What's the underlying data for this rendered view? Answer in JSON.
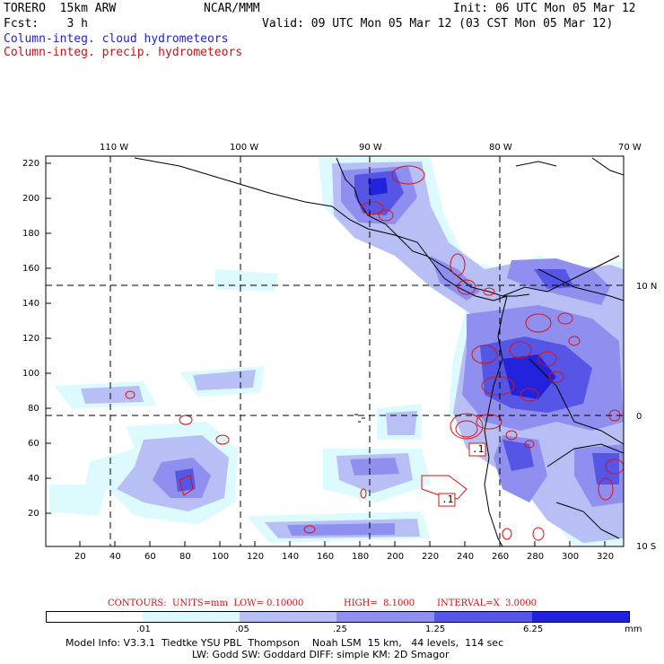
{
  "header": {
    "model": "TORERO  15km ARW",
    "org": "NCAR/MMM",
    "init": "Init: 06 UTC Mon 05 Mar 12",
    "fcst": "Fcst:    3 h",
    "valid": "Valid: 09 UTC Mon 05 Mar 12 (03 CST Mon 05 Mar 12)",
    "field1": "Column-integ. cloud hydrometeors",
    "field2": "Column-integ. precip. hydrometeors"
  },
  "map": {
    "lon_labels": [
      "110 W",
      "100 W",
      "90 W",
      "80 W",
      "70 W"
    ],
    "lat_labels": [
      "10 N",
      "0",
      "10 S"
    ],
    "y_ticks": [
      "220",
      "200",
      "180",
      "160",
      "140",
      "120",
      "100",
      "80",
      "60",
      "40",
      "20"
    ],
    "x_ticks": [
      "20",
      "40",
      "60",
      "80",
      "100",
      "120",
      "140",
      "160",
      "180",
      "200",
      "220",
      "240",
      "260",
      "280",
      "300",
      "320"
    ],
    "contour_boxes": [
      ".1",
      ".1"
    ]
  },
  "contour_info": {
    "units": "CONTOURS:  UNITS=mm  LOW= 0.10000",
    "high": "HIGH=  8.1000",
    "interval": "INTERVAL=X  3.0000"
  },
  "colorbar": {
    "labels": [
      ".01",
      ".05",
      ".25",
      "1.25",
      "6.25"
    ],
    "unit": "mm",
    "colors": [
      "#ffffff",
      "#ddfbff",
      "#b8bff5",
      "#8f8ff0",
      "#5656e6",
      "#2222dd"
    ]
  },
  "footer": {
    "line1": "Model Info: V3.3.1  Tiedtke YSU PBL  Thompson    Noah LSM  15 km,   44 levels,  114 sec",
    "line2": "LW: Godd SW: Goddard DIFF: simple KM: 2D Smagor"
  }
}
